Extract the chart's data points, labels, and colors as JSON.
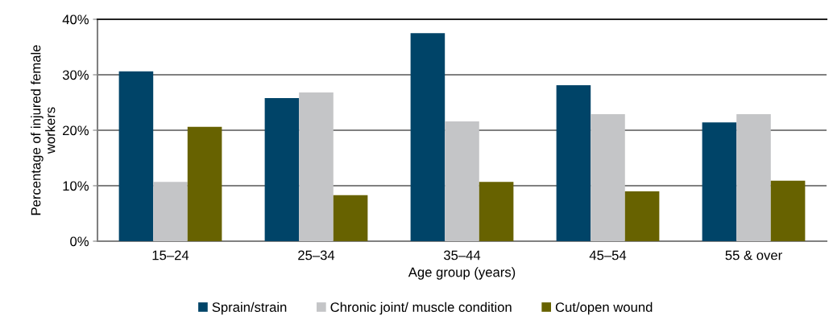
{
  "chart_data": {
    "type": "bar",
    "xlabel": "Age group (years)",
    "ylabel": "Percentage of injured female\nworkers",
    "categories": [
      "15–24",
      "25–34",
      "35–44",
      "45–54",
      "55 & over"
    ],
    "series": [
      {
        "name": "Sprain/strain",
        "color": "#004468",
        "values": [
          30.6,
          25.8,
          37.5,
          28.1,
          21.4
        ]
      },
      {
        "name": "Chronic joint/ muscle condition",
        "color": "#c4c5c7",
        "values": [
          10.7,
          26.8,
          21.6,
          22.9,
          22.9
        ]
      },
      {
        "name": "Cut/open wound",
        "color": "#676200",
        "values": [
          20.6,
          8.3,
          10.7,
          9.0,
          10.9
        ]
      }
    ],
    "ylim": [
      0,
      40
    ],
    "yticks": [
      {
        "value": 0,
        "label": "0%"
      },
      {
        "value": 10,
        "label": "10%"
      },
      {
        "value": 20,
        "label": "20%"
      },
      {
        "value": 30,
        "label": "30%"
      },
      {
        "value": 40,
        "label": "40%"
      }
    ],
    "grid": "y",
    "legend": "bottom"
  }
}
